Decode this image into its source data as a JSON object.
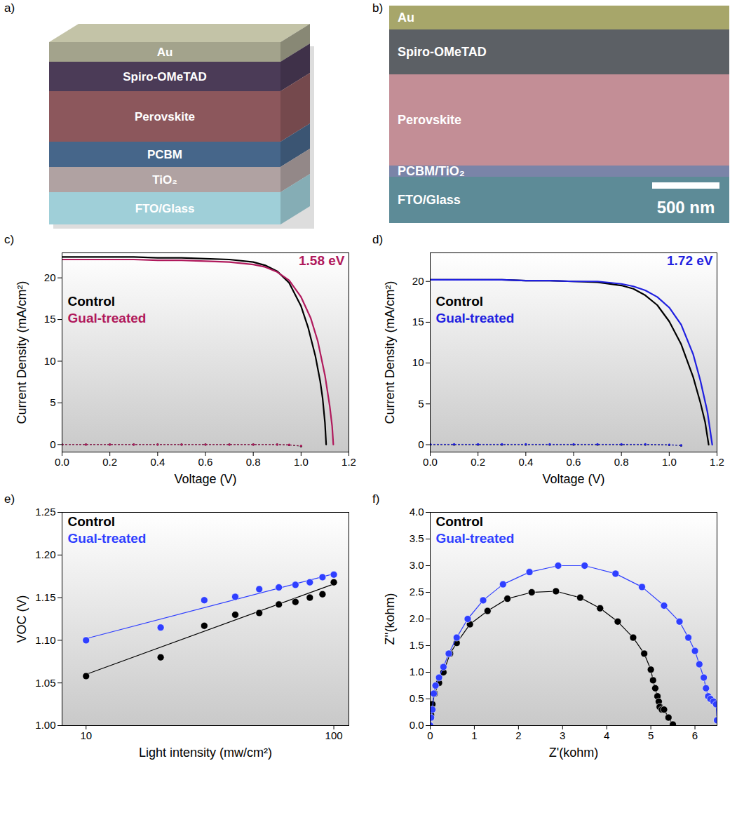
{
  "panels": [
    {
      "letter": "a)",
      "layers": [
        "Au",
        "Spiro-OMeTAD",
        "Perovskite",
        "PCBM",
        "TiO₂",
        "FTO/Glass"
      ]
    },
    {
      "letter": "b)",
      "layers": [
        "Au",
        "Spiro-OMeTAD",
        "Perovskite",
        "PCBM/TiO₂",
        "FTO/Glass"
      ],
      "scale_bar": "500 nm"
    }
  ],
  "chart_data": [
    {
      "letter": "c)",
      "type": "line",
      "xlabel": "Voltage (V)",
      "ylabel": "Current Density (mA/cm²)",
      "xlim": [
        0,
        1.2
      ],
      "xticks": [
        {
          "value": 0,
          "label": "0.0"
        },
        0.2,
        0.4,
        0.6,
        0.8,
        {
          "value": 1,
          "label": "1.0"
        },
        1.2
      ],
      "ylim": [
        -0.9,
        23
      ],
      "yticks": [
        0,
        5,
        10,
        15,
        20
      ],
      "legend": "top-left",
      "annotations": [
        {
          "text": "1.58 eV",
          "color": "#b0195c"
        }
      ],
      "series": [
        {
          "name": "Control",
          "color": "#000000",
          "x": [
            0,
            0.1,
            0.2,
            0.3,
            0.4,
            0.5,
            0.6,
            0.7,
            0.8,
            0.85,
            0.9,
            0.95,
            1.0,
            1.03,
            1.06,
            1.08,
            1.09,
            1.1,
            1.105
          ],
          "values": [
            22.5,
            22.5,
            22.5,
            22.5,
            22.4,
            22.4,
            22.3,
            22.2,
            21.9,
            21.5,
            20.8,
            19.4,
            16.6,
            14.0,
            10.6,
            7.6,
            5.6,
            2.6,
            0
          ]
        },
        {
          "name": "Gual-treated",
          "color": "#b0195c",
          "x": [
            0,
            0.1,
            0.2,
            0.3,
            0.4,
            0.5,
            0.6,
            0.7,
            0.8,
            0.85,
            0.9,
            0.95,
            1.0,
            1.04,
            1.07,
            1.1,
            1.12,
            1.13,
            1.135
          ],
          "values": [
            22.2,
            22.2,
            22.2,
            22.2,
            22.1,
            22.1,
            22.0,
            21.9,
            21.6,
            21.3,
            20.7,
            19.7,
            17.7,
            15.2,
            12.4,
            8.3,
            4.6,
            2.2,
            0
          ]
        },
        {
          "name": null,
          "color": "#000000",
          "line_style": "dotted",
          "marker": "dot",
          "x": [
            0,
            0.1,
            0.2,
            0.3,
            0.4,
            0.5,
            0.6,
            0.7,
            0.8,
            0.9,
            0.95,
            1.0
          ],
          "values": [
            0,
            0,
            0,
            0,
            0,
            0,
            0,
            0,
            0,
            0,
            -0.05,
            -0.2
          ]
        },
        {
          "name": null,
          "color": "#b0195c",
          "line_style": "dotted",
          "marker": "dot",
          "x": [
            0,
            0.1,
            0.2,
            0.3,
            0.4,
            0.5,
            0.6,
            0.7,
            0.8,
            0.9,
            0.95,
            1.0
          ],
          "values": [
            0,
            0,
            0,
            0,
            0,
            0,
            0,
            0,
            0,
            0,
            -0.03,
            -0.15
          ]
        }
      ]
    },
    {
      "letter": "d)",
      "type": "line",
      "xlabel": "Voltage (V)",
      "ylabel": "Current Density (mA/cm²)",
      "xlim": [
        0,
        1.2
      ],
      "xticks": [
        {
          "value": 0,
          "label": "0.0"
        },
        0.2,
        0.4,
        0.6,
        0.8,
        {
          "value": 1,
          "label": "1.0"
        },
        1.2
      ],
      "ylim": [
        -0.9,
        23.5
      ],
      "yticks": [
        0,
        5,
        10,
        15,
        20
      ],
      "legend": "top-left",
      "annotations": [
        {
          "text": "1.72 eV",
          "color": "#1f1fe0"
        }
      ],
      "series": [
        {
          "name": "Control",
          "color": "#000000",
          "x": [
            0,
            0.1,
            0.2,
            0.3,
            0.4,
            0.5,
            0.6,
            0.7,
            0.8,
            0.85,
            0.9,
            0.95,
            1.0,
            1.05,
            1.1,
            1.13,
            1.15,
            1.165
          ],
          "values": [
            20.2,
            20.2,
            20.2,
            20.2,
            20.1,
            20.1,
            20.0,
            19.9,
            19.5,
            19.1,
            18.3,
            17.1,
            15.1,
            12.3,
            8.3,
            5.2,
            2.8,
            0
          ]
        },
        {
          "name": "Gual-treated",
          "color": "#1f1fe0",
          "x": [
            0,
            0.1,
            0.2,
            0.3,
            0.4,
            0.5,
            0.6,
            0.7,
            0.8,
            0.85,
            0.9,
            0.95,
            1.0,
            1.05,
            1.1,
            1.13,
            1.16,
            1.18
          ],
          "values": [
            20.2,
            20.2,
            20.2,
            20.2,
            20.1,
            20.1,
            20.0,
            20.0,
            19.7,
            19.4,
            18.9,
            18.1,
            16.8,
            14.7,
            11.1,
            7.9,
            4.0,
            0
          ]
        },
        {
          "name": null,
          "color": "#000000",
          "line_style": "dotted",
          "marker": "dot",
          "x": [
            0,
            0.1,
            0.2,
            0.3,
            0.4,
            0.5,
            0.6,
            0.7,
            0.8,
            0.9,
            1.0,
            1.05
          ],
          "values": [
            0,
            0,
            0,
            0,
            0,
            0,
            0,
            0,
            0,
            0,
            -0.03,
            -0.1
          ]
        },
        {
          "name": null,
          "color": "#1f1fe0",
          "line_style": "dotted",
          "marker": "dot",
          "x": [
            0,
            0.1,
            0.2,
            0.3,
            0.4,
            0.5,
            0.6,
            0.7,
            0.8,
            0.9,
            1.0,
            1.05
          ],
          "values": [
            0.05,
            0.05,
            0.05,
            0.05,
            0.05,
            0.05,
            0.05,
            0.05,
            0.05,
            0.05,
            0,
            -0.08
          ]
        }
      ]
    },
    {
      "letter": "e)",
      "type": "scatter",
      "log": "x",
      "xlabel": "Light intensity (mw/cm²)",
      "ylabel": "VOC (V)",
      "xlim": [
        8,
        115
      ],
      "xticks": [
        10,
        100
      ],
      "ylim": [
        1.0,
        1.25
      ],
      "yticks": [
        {
          "value": 1.0,
          "label": "1.00"
        },
        1.05,
        {
          "value": 1.1,
          "label": "1.10"
        },
        1.15,
        {
          "value": 1.2,
          "label": "1.20"
        },
        1.25
      ],
      "legend": "top-left",
      "series": [
        {
          "name": "Control",
          "color": "#000000",
          "marker": "circle",
          "x": [
            10,
            20,
            30,
            40,
            50,
            60,
            70,
            80,
            90,
            100
          ],
          "values": [
            1.058,
            1.08,
            1.117,
            1.13,
            1.132,
            1.142,
            1.145,
            1.15,
            1.154,
            1.168
          ],
          "fit_x": [
            10,
            100
          ],
          "fit": [
            1.06,
            1.166
          ]
        },
        {
          "name": "Gual-treated",
          "color": "#2f3fff",
          "marker": "circle",
          "x": [
            10,
            20,
            30,
            40,
            50,
            60,
            70,
            80,
            90,
            100
          ],
          "values": [
            1.1,
            1.115,
            1.147,
            1.151,
            1.16,
            1.162,
            1.165,
            1.168,
            1.174,
            1.177
          ],
          "fit_x": [
            10,
            100
          ],
          "fit": [
            1.102,
            1.178
          ]
        }
      ]
    },
    {
      "letter": "f)",
      "type": "line",
      "xlabel": "Z'(kohm)",
      "ylabel": "Z''(kohm)",
      "xlim": [
        0,
        6.5
      ],
      "xticks": [
        0,
        1,
        2,
        3,
        4,
        5,
        6
      ],
      "ylim": [
        0,
        4
      ],
      "yticks": [
        {
          "value": 0,
          "label": "0.0"
        },
        0.5,
        {
          "value": 1,
          "label": "1.0"
        },
        1.5,
        {
          "value": 2,
          "label": "2.0"
        },
        2.5,
        {
          "value": 3,
          "label": "3.0"
        },
        3.5,
        {
          "value": 4,
          "label": "4.0"
        }
      ],
      "legend": "top-left",
      "series": [
        {
          "name": "Control",
          "color": "#000000",
          "marker": "circle",
          "x": [
            0,
            0.02,
            0.05,
            0.1,
            0.2,
            0.3,
            0.45,
            0.6,
            0.9,
            1.3,
            1.75,
            2.3,
            2.85,
            3.4,
            3.85,
            4.25,
            4.6,
            4.85,
            5.0,
            5.05,
            5.1,
            5.15,
            5.18,
            5.2,
            5.25,
            5.3,
            5.4,
            5.5
          ],
          "values": [
            0,
            0.2,
            0.4,
            0.6,
            0.8,
            1.0,
            1.35,
            1.55,
            1.9,
            2.15,
            2.38,
            2.5,
            2.52,
            2.4,
            2.2,
            1.95,
            1.65,
            1.35,
            1.05,
            0.85,
            0.7,
            0.55,
            0.45,
            0.35,
            0.3,
            0.3,
            0.15,
            0.02
          ]
        },
        {
          "name": "Gual-treated",
          "color": "#2f3fff",
          "marker": "circle",
          "x": [
            0,
            0.02,
            0.05,
            0.08,
            0.12,
            0.2,
            0.3,
            0.42,
            0.6,
            0.85,
            1.2,
            1.65,
            2.25,
            2.9,
            3.5,
            4.2,
            4.8,
            5.3,
            5.65,
            5.85,
            6.0,
            6.1,
            6.2,
            6.25,
            6.3,
            6.35,
            6.42,
            6.48,
            6.5
          ],
          "values": [
            0,
            0.15,
            0.3,
            0.6,
            0.75,
            0.9,
            1.1,
            1.35,
            1.65,
            2.0,
            2.35,
            2.65,
            2.88,
            3.0,
            3.0,
            2.85,
            2.6,
            2.25,
            1.95,
            1.65,
            1.4,
            1.15,
            0.9,
            0.7,
            0.55,
            0.5,
            0.45,
            0.4,
            0.1
          ]
        }
      ]
    }
  ]
}
